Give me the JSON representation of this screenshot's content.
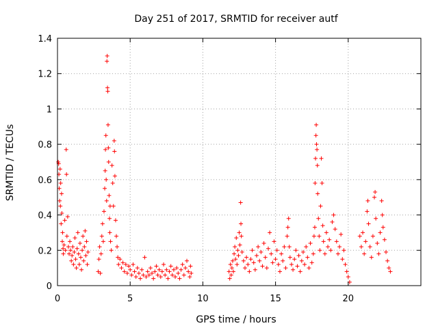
{
  "chart_data": {
    "type": "scatter",
    "title": "Day 251 of 2017, SRMTID for receiver autf",
    "xlabel": "GPS time / hours",
    "ylabel": "SRMTID / TECUs",
    "xlim": [
      0,
      25
    ],
    "ylim": [
      0,
      1.4
    ],
    "x_ticks": [
      0,
      5,
      10,
      15,
      20
    ],
    "y_ticks": [
      0,
      0.2,
      0.4,
      0.6,
      0.8,
      1,
      1.2,
      1.4
    ],
    "x_tick_labels": [
      "0",
      "5",
      "10",
      "15",
      "20"
    ],
    "y_tick_labels": [
      "0",
      "0.2",
      "0.4",
      "0.6",
      "0.8",
      "1",
      "1.2",
      "1.4"
    ],
    "grid": true,
    "marker": "+",
    "color": "#ff0000",
    "series": [
      {
        "name": "SRMTID",
        "points": [
          [
            0.05,
            0.7
          ],
          [
            0.08,
            0.69
          ],
          [
            0.1,
            0.63
          ],
          [
            0.12,
            0.55
          ],
          [
            0.15,
            0.48
          ],
          [
            0.18,
            0.66
          ],
          [
            0.2,
            0.45
          ],
          [
            0.22,
            0.58
          ],
          [
            0.25,
            0.35
          ],
          [
            0.28,
            0.52
          ],
          [
            0.3,
            0.41
          ],
          [
            0.33,
            0.25
          ],
          [
            0.35,
            0.3
          ],
          [
            0.38,
            0.21
          ],
          [
            0.4,
            0.18
          ],
          [
            0.45,
            0.23
          ],
          [
            0.5,
            0.37
          ],
          [
            0.55,
            0.2
          ],
          [
            0.6,
            0.77
          ],
          [
            0.62,
            0.63
          ],
          [
            0.65,
            0.28
          ],
          [
            0.7,
            0.39
          ],
          [
            0.75,
            0.22
          ],
          [
            0.8,
            0.18
          ],
          [
            0.85,
            0.25
          ],
          [
            0.9,
            0.2
          ],
          [
            0.95,
            0.14
          ],
          [
            1.0,
            0.17
          ],
          [
            1.05,
            0.22
          ],
          [
            1.1,
            0.12
          ],
          [
            1.15,
            0.19
          ],
          [
            1.2,
            0.27
          ],
          [
            1.25,
            0.15
          ],
          [
            1.3,
            0.1
          ],
          [
            1.35,
            0.21
          ],
          [
            1.4,
            0.3
          ],
          [
            1.45,
            0.18
          ],
          [
            1.5,
            0.12
          ],
          [
            1.55,
            0.24
          ],
          [
            1.6,
            0.16
          ],
          [
            1.65,
            0.09
          ],
          [
            1.7,
            0.2
          ],
          [
            1.75,
            0.28
          ],
          [
            1.8,
            0.14
          ],
          [
            1.85,
            0.22
          ],
          [
            1.9,
            0.31
          ],
          [
            1.95,
            0.17
          ],
          [
            2.0,
            0.25
          ],
          [
            2.05,
            0.12
          ],
          [
            2.1,
            0.19
          ],
          [
            2.8,
            0.08
          ],
          [
            2.85,
            0.15
          ],
          [
            2.9,
            0.22
          ],
          [
            2.95,
            0.07
          ],
          [
            3.0,
            0.18
          ],
          [
            3.05,
            0.28
          ],
          [
            3.1,
            0.35
          ],
          [
            3.15,
            0.25
          ],
          [
            3.2,
            0.42
          ],
          [
            3.25,
            0.55
          ],
          [
            3.28,
            0.65
          ],
          [
            3.3,
            0.77
          ],
          [
            3.33,
            0.85
          ],
          [
            3.35,
            0.6
          ],
          [
            3.38,
            0.48
          ],
          [
            3.4,
            1.27
          ],
          [
            3.42,
            1.3
          ],
          [
            3.44,
            1.12
          ],
          [
            3.46,
            1.1
          ],
          [
            3.48,
            0.91
          ],
          [
            3.5,
            0.78
          ],
          [
            3.52,
            0.7
          ],
          [
            3.55,
            0.51
          ],
          [
            3.58,
            0.38
          ],
          [
            3.6,
            0.3
          ],
          [
            3.62,
            0.45
          ],
          [
            3.65,
            0.25
          ],
          [
            3.7,
            0.2
          ],
          [
            3.75,
            0.68
          ],
          [
            3.8,
            0.58
          ],
          [
            3.85,
            0.45
          ],
          [
            3.9,
            0.82
          ],
          [
            3.92,
            0.76
          ],
          [
            3.95,
            0.62
          ],
          [
            4.0,
            0.37
          ],
          [
            4.05,
            0.28
          ],
          [
            4.1,
            0.22
          ],
          [
            4.15,
            0.16
          ],
          [
            4.2,
            0.12
          ],
          [
            4.3,
            0.15
          ],
          [
            4.4,
            0.1
          ],
          [
            4.5,
            0.13
          ],
          [
            4.6,
            0.08
          ],
          [
            4.7,
            0.12
          ],
          [
            4.8,
            0.07
          ],
          [
            4.9,
            0.11
          ],
          [
            5.0,
            0.09
          ],
          [
            5.1,
            0.06
          ],
          [
            5.2,
            0.12
          ],
          [
            5.3,
            0.08
          ],
          [
            5.4,
            0.05
          ],
          [
            5.5,
            0.1
          ],
          [
            5.6,
            0.07
          ],
          [
            5.7,
            0.04
          ],
          [
            5.8,
            0.09
          ],
          [
            5.9,
            0.06
          ],
          [
            6.0,
            0.16
          ],
          [
            6.1,
            0.05
          ],
          [
            6.2,
            0.08
          ],
          [
            6.3,
            0.06
          ],
          [
            6.4,
            0.1
          ],
          [
            6.5,
            0.07
          ],
          [
            6.6,
            0.04
          ],
          [
            6.7,
            0.08
          ],
          [
            6.8,
            0.11
          ],
          [
            6.9,
            0.06
          ],
          [
            7.0,
            0.09
          ],
          [
            7.1,
            0.05
          ],
          [
            7.2,
            0.08
          ],
          [
            7.3,
            0.12
          ],
          [
            7.4,
            0.06
          ],
          [
            7.5,
            0.09
          ],
          [
            7.6,
            0.04
          ],
          [
            7.7,
            0.08
          ],
          [
            7.8,
            0.11
          ],
          [
            7.9,
            0.06
          ],
          [
            8.0,
            0.09
          ],
          [
            8.1,
            0.05
          ],
          [
            8.2,
            0.1
          ],
          [
            8.3,
            0.07
          ],
          [
            8.4,
            0.04
          ],
          [
            8.5,
            0.09
          ],
          [
            8.6,
            0.12
          ],
          [
            8.7,
            0.06
          ],
          [
            8.8,
            0.1
          ],
          [
            8.9,
            0.14
          ],
          [
            9.0,
            0.08
          ],
          [
            9.1,
            0.05
          ],
          [
            9.15,
            0.11
          ],
          [
            9.2,
            0.07
          ],
          [
            11.8,
            0.08
          ],
          [
            11.85,
            0.04
          ],
          [
            11.9,
            0.12
          ],
          [
            11.95,
            0.06
          ],
          [
            12.0,
            0.1
          ],
          [
            12.05,
            0.14
          ],
          [
            12.1,
            0.08
          ],
          [
            12.15,
            0.18
          ],
          [
            12.2,
            0.22
          ],
          [
            12.25,
            0.15
          ],
          [
            12.3,
            0.27
          ],
          [
            12.35,
            0.12
          ],
          [
            12.4,
            0.2
          ],
          [
            12.45,
            0.17
          ],
          [
            12.5,
            0.3
          ],
          [
            12.55,
            0.23
          ],
          [
            12.6,
            0.47
          ],
          [
            12.62,
            0.35
          ],
          [
            12.65,
            0.28
          ],
          [
            12.7,
            0.19
          ],
          [
            12.8,
            0.14
          ],
          [
            12.9,
            0.1
          ],
          [
            13.0,
            0.16
          ],
          [
            13.1,
            0.12
          ],
          [
            13.2,
            0.08
          ],
          [
            13.3,
            0.15
          ],
          [
            13.4,
            0.2
          ],
          [
            13.5,
            0.13
          ],
          [
            13.6,
            0.09
          ],
          [
            13.7,
            0.17
          ],
          [
            13.8,
            0.22
          ],
          [
            13.9,
            0.14
          ],
          [
            14.0,
            0.19
          ],
          [
            14.1,
            0.11
          ],
          [
            14.2,
            0.24
          ],
          [
            14.3,
            0.16
          ],
          [
            14.4,
            0.1
          ],
          [
            14.5,
            0.21
          ],
          [
            14.6,
            0.3
          ],
          [
            14.7,
            0.18
          ],
          [
            14.8,
            0.13
          ],
          [
            14.9,
            0.25
          ],
          [
            15.0,
            0.15
          ],
          [
            15.1,
            0.2
          ],
          [
            15.2,
            0.12
          ],
          [
            15.3,
            0.08
          ],
          [
            15.4,
            0.18
          ],
          [
            15.5,
            0.14
          ],
          [
            15.6,
            0.22
          ],
          [
            15.7,
            0.1
          ],
          [
            15.8,
            0.28
          ],
          [
            15.85,
            0.33
          ],
          [
            15.9,
            0.38
          ],
          [
            15.95,
            0.22
          ],
          [
            16.0,
            0.16
          ],
          [
            16.1,
            0.12
          ],
          [
            16.2,
            0.09
          ],
          [
            16.3,
            0.15
          ],
          [
            16.4,
            0.2
          ],
          [
            16.5,
            0.11
          ],
          [
            16.6,
            0.17
          ],
          [
            16.7,
            0.08
          ],
          [
            16.8,
            0.14
          ],
          [
            16.9,
            0.19
          ],
          [
            17.0,
            0.12
          ],
          [
            17.1,
            0.22
          ],
          [
            17.2,
            0.16
          ],
          [
            17.3,
            0.1
          ],
          [
            17.4,
            0.24
          ],
          [
            17.5,
            0.13
          ],
          [
            17.6,
            0.18
          ],
          [
            17.65,
            0.28
          ],
          [
            17.7,
            0.33
          ],
          [
            17.72,
            0.58
          ],
          [
            17.75,
            0.72
          ],
          [
            17.78,
            0.85
          ],
          [
            17.8,
            0.91
          ],
          [
            17.82,
            0.8
          ],
          [
            17.85,
            0.77
          ],
          [
            17.88,
            0.68
          ],
          [
            17.9,
            0.52
          ],
          [
            17.95,
            0.38
          ],
          [
            18.0,
            0.28
          ],
          [
            18.05,
            0.2
          ],
          [
            18.1,
            0.45
          ],
          [
            18.15,
            0.72
          ],
          [
            18.2,
            0.58
          ],
          [
            18.25,
            0.34
          ],
          [
            18.3,
            0.25
          ],
          [
            18.4,
            0.18
          ],
          [
            18.5,
            0.3
          ],
          [
            18.6,
            0.22
          ],
          [
            18.7,
            0.26
          ],
          [
            18.8,
            0.2
          ],
          [
            18.9,
            0.36
          ],
          [
            19.0,
            0.4
          ],
          [
            19.1,
            0.32
          ],
          [
            19.2,
            0.25
          ],
          [
            19.3,
            0.18
          ],
          [
            19.4,
            0.22
          ],
          [
            19.5,
            0.29
          ],
          [
            19.6,
            0.15
          ],
          [
            19.7,
            0.2
          ],
          [
            19.8,
            0.12
          ],
          [
            19.9,
            0.08
          ],
          [
            20.0,
            0.05
          ],
          [
            20.1,
            0.02
          ],
          [
            20.8,
            0.28
          ],
          [
            20.9,
            0.22
          ],
          [
            21.0,
            0.3
          ],
          [
            21.1,
            0.18
          ],
          [
            21.2,
            0.25
          ],
          [
            21.3,
            0.42
          ],
          [
            21.35,
            0.48
          ],
          [
            21.4,
            0.35
          ],
          [
            21.5,
            0.22
          ],
          [
            21.6,
            0.16
          ],
          [
            21.7,
            0.28
          ],
          [
            21.8,
            0.5
          ],
          [
            21.85,
            0.53
          ],
          [
            21.9,
            0.38
          ],
          [
            22.0,
            0.24
          ],
          [
            22.1,
            0.18
          ],
          [
            22.2,
            0.3
          ],
          [
            22.3,
            0.48
          ],
          [
            22.35,
            0.4
          ],
          [
            22.4,
            0.33
          ],
          [
            22.5,
            0.26
          ],
          [
            22.6,
            0.19
          ],
          [
            22.7,
            0.14
          ],
          [
            22.8,
            0.1
          ],
          [
            22.9,
            0.08
          ]
        ]
      }
    ]
  }
}
